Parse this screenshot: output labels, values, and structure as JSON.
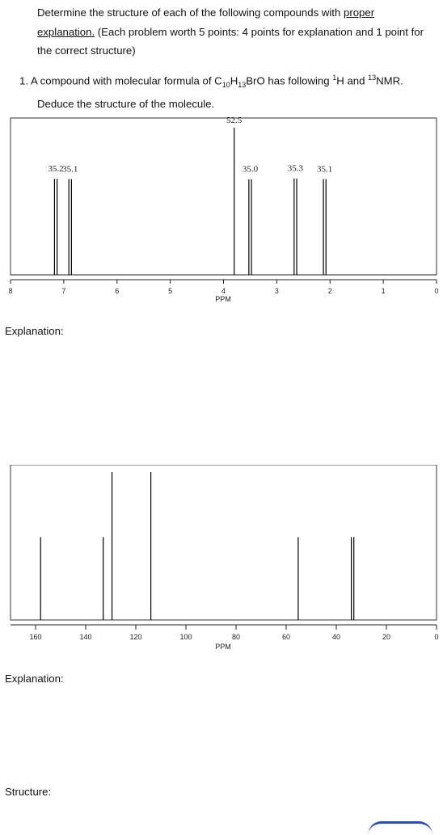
{
  "intro": {
    "part1": "Determine the structure of each of the following compounds with ",
    "underline1": "proper",
    "underline2": "explanation.",
    "part2": " (Each problem worth 5 points: 4 points for explanation and 1 point for the correct structure)"
  },
  "question": {
    "number": "1.",
    "text_a": "A compound with molecular formula of C",
    "sub1": "10",
    "text_b": "H",
    "sub2": "13",
    "text_c": "BrO has following ",
    "sup1": "1",
    "text_d": "H and ",
    "sup2": "13",
    "text_e": "NMR.",
    "line2": "Deduce the structure of the molecule."
  },
  "hnmr": {
    "unit": "PPM",
    "ticks": [
      "8",
      "7",
      "6",
      "5",
      "4",
      "3",
      "2",
      "1",
      "0"
    ],
    "peaks": [
      {
        "label": "35.2",
        "ppm": 7.15,
        "height": 35.2
      },
      {
        "label": "35.1",
        "ppm": 6.88,
        "height": 35.1
      },
      {
        "label": "52.5",
        "ppm": 3.8,
        "height": 52.5
      },
      {
        "label": "35.0",
        "ppm": 3.5,
        "height": 35.0
      },
      {
        "label": "35.3",
        "ppm": 2.65,
        "height": 35.3
      },
      {
        "label": "35.1",
        "ppm": 2.1,
        "height": 35.1
      }
    ]
  },
  "cnmr": {
    "unit": "PPM",
    "ticks": [
      "160",
      "140",
      "120",
      "100",
      "80",
      "60",
      "40",
      "20",
      "0"
    ],
    "peaks": [
      {
        "ppm": 158.0,
        "intensity": 0.56
      },
      {
        "ppm": 133.0,
        "intensity": 0.56
      },
      {
        "ppm": 129.5,
        "intensity": 1.0
      },
      {
        "ppm": 114.0,
        "intensity": 1.0
      },
      {
        "ppm": 55.2,
        "intensity": 0.56
      },
      {
        "ppm": 34.0,
        "intensity": 0.56
      },
      {
        "ppm": 33.0,
        "intensity": 0.56
      }
    ]
  },
  "explanation1": "Explanation:",
  "explanation2": "Explanation:",
  "structure": "Structure:"
}
